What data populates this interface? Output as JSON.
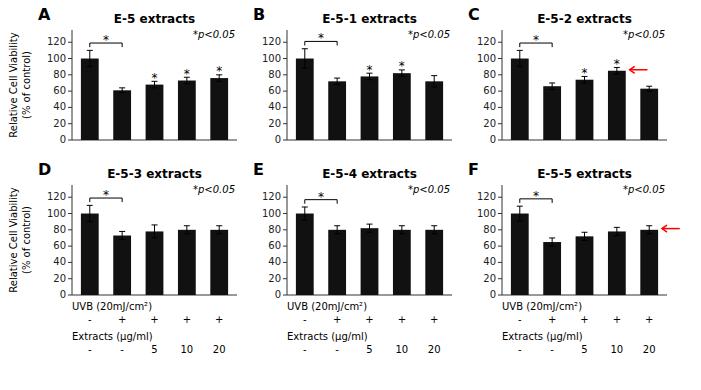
{
  "chart_data": [
    {
      "type": "bar",
      "panel_label": "A",
      "title": "E-5 extracts",
      "ylabel": "Relative Cell Viability\n(% of control)",
      "values": [
        100,
        61,
        68,
        73,
        76
      ],
      "errors": [
        10,
        3,
        4,
        4,
        4
      ],
      "starred": [
        false,
        false,
        true,
        true,
        true
      ],
      "star_label": "*",
      "bracket": {
        "between": [
          0,
          1
        ],
        "label": "*"
      },
      "annotation": "*p<0.05",
      "color": "#111111",
      "ylim": [
        0,
        135
      ],
      "yticks": [
        0,
        20,
        40,
        60,
        80,
        100,
        120
      ],
      "tick_labels": "y"
    },
    {
      "type": "bar",
      "panel_label": "B",
      "title": "E-5-1 extracts",
      "values": [
        100,
        72,
        78,
        82,
        72
      ],
      "errors": [
        12,
        4,
        4,
        4,
        7
      ],
      "starred": [
        false,
        false,
        true,
        true,
        false
      ],
      "star_label": "*",
      "bracket": {
        "between": [
          0,
          1
        ],
        "label": "*"
      },
      "annotation": "*p<0.05",
      "color": "#111111",
      "ylim": [
        0,
        135
      ],
      "yticks": [
        0,
        20,
        40,
        60,
        80,
        100,
        120
      ],
      "tick_labels": "y"
    },
    {
      "type": "bar",
      "panel_label": "C",
      "title": "E-5-2 extracts",
      "values": [
        100,
        66,
        74,
        85,
        63
      ],
      "errors": [
        10,
        4,
        4,
        4,
        3
      ],
      "starred": [
        false,
        false,
        true,
        true,
        false
      ],
      "star_label": "*",
      "bracket": {
        "between": [
          0,
          1
        ],
        "label": "*"
      },
      "annotation": "*p<0.05",
      "arrow": {
        "bar": 3,
        "color": "red"
      },
      "color": "#111111",
      "ylim": [
        0,
        135
      ],
      "yticks": [
        0,
        20,
        40,
        60,
        80,
        100,
        120
      ],
      "tick_labels": "y"
    },
    {
      "type": "bar",
      "panel_label": "D",
      "title": "E-5-3 extracts",
      "ylabel": "Relative Cell Viability\n(% of control)",
      "values": [
        100,
        73,
        78,
        80,
        80
      ],
      "errors": [
        10,
        5,
        8,
        5,
        5
      ],
      "starred": [
        false,
        false,
        false,
        false,
        false
      ],
      "star_label": "*",
      "bracket": {
        "between": [
          0,
          1
        ],
        "label": "*"
      },
      "annotation": "*p<0.05",
      "color": "#111111",
      "ylim": [
        0,
        135
      ],
      "yticks": [
        0,
        20,
        40,
        60,
        80,
        100,
        120
      ],
      "tick_labels": "y",
      "x_label_rows": [
        {
          "label": "UVB (20mJ/cm²)",
          "categories": [
            "-",
            "+",
            "+",
            "+",
            "+"
          ]
        },
        {
          "label": "Extracts (μg/ml)",
          "categories": [
            "-",
            "-",
            "5",
            "10",
            "20"
          ]
        }
      ]
    },
    {
      "type": "bar",
      "panel_label": "E",
      "title": "E-5-4 extracts",
      "values": [
        100,
        80,
        82,
        80,
        80
      ],
      "errors": [
        8,
        5,
        5,
        5,
        5
      ],
      "starred": [
        false,
        false,
        false,
        false,
        false
      ],
      "star_label": "*",
      "bracket": {
        "between": [
          0,
          1
        ],
        "label": "*"
      },
      "annotation": "*p<0.05",
      "color": "#111111",
      "ylim": [
        0,
        135
      ],
      "yticks": [
        0,
        20,
        40,
        60,
        80,
        100,
        120
      ],
      "tick_labels": "y",
      "x_label_rows": [
        {
          "label": "UVB (20mJ/cm²)",
          "categories": [
            "-",
            "+",
            "+",
            "+",
            "+"
          ]
        },
        {
          "label": "Extracts (μg/ml)",
          "categories": [
            "-",
            "-",
            "5",
            "10",
            "20"
          ]
        }
      ]
    },
    {
      "type": "bar",
      "panel_label": "F",
      "title": "E-5-5 extracts",
      "values": [
        100,
        65,
        72,
        78,
        80
      ],
      "errors": [
        9,
        5,
        5,
        5,
        5
      ],
      "starred": [
        false,
        false,
        false,
        false,
        false
      ],
      "star_label": "*",
      "bracket": {
        "between": [
          0,
          1
        ],
        "label": "*"
      },
      "annotation": "*p<0.05",
      "arrow": {
        "bar": 4,
        "color": "red"
      },
      "color": "#111111",
      "ylim": [
        0,
        135
      ],
      "yticks": [
        0,
        20,
        40,
        60,
        80,
        100,
        120
      ],
      "tick_labels": "y",
      "x_label_rows": [
        {
          "label": "UVB (20mJ/cm²)",
          "categories": [
            "-",
            "+",
            "+",
            "+",
            "+"
          ]
        },
        {
          "label": "Extracts (μg/ml)",
          "categories": [
            "-",
            "-",
            "5",
            "10",
            "20"
          ]
        }
      ]
    }
  ]
}
